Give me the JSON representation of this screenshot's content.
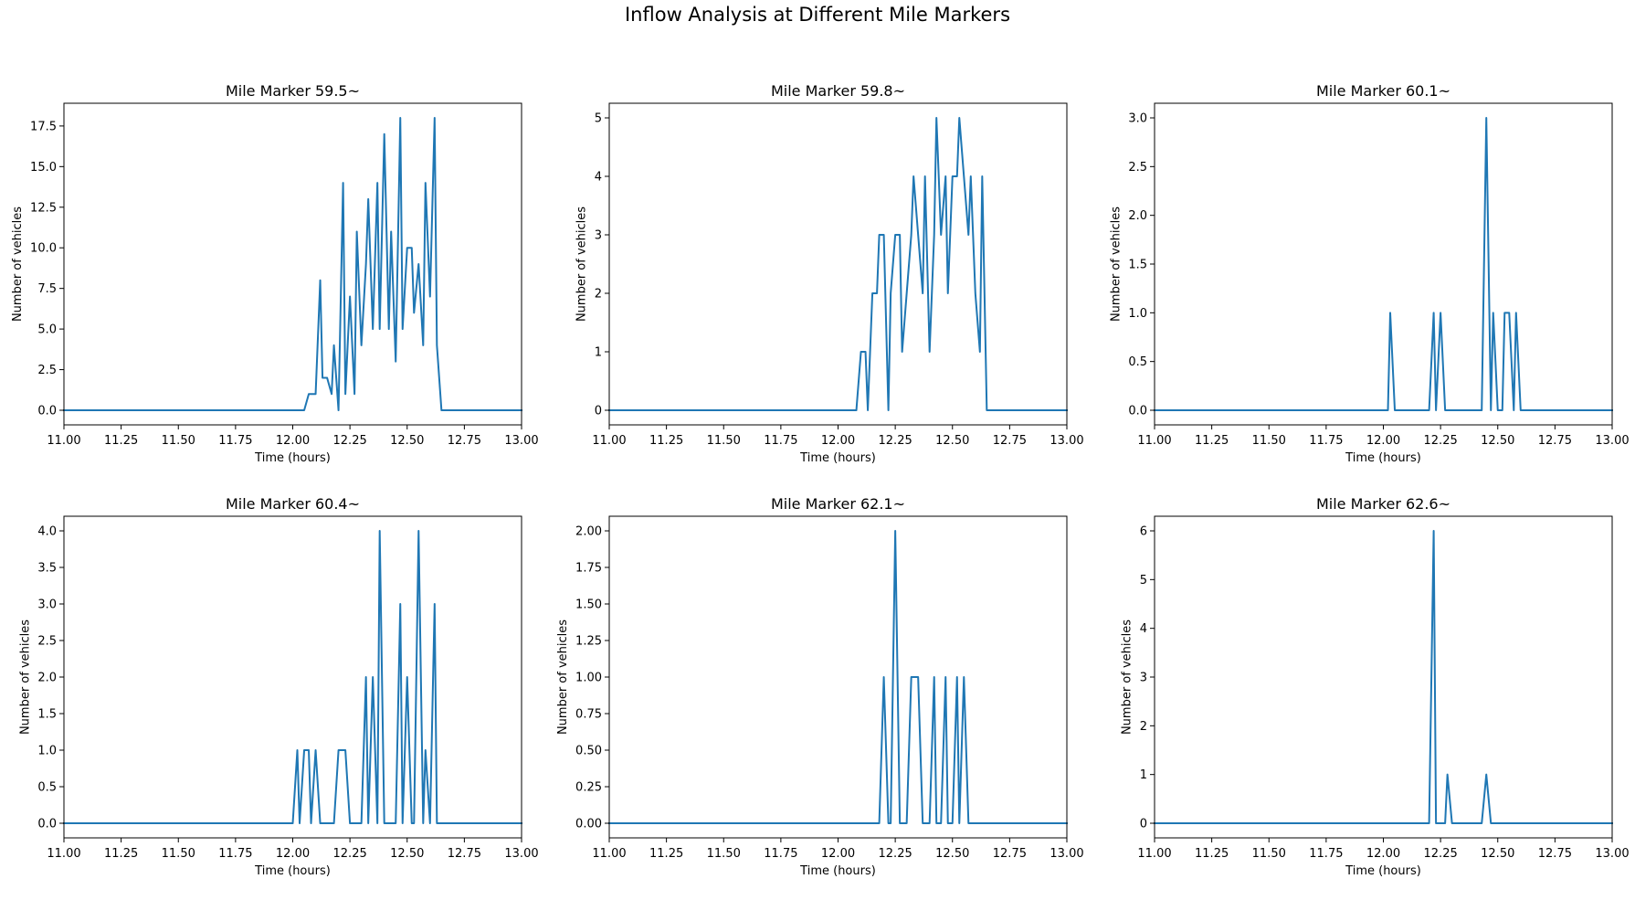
{
  "figure_title": "Inflow Analysis at Different Mile Markers",
  "line_color": "#1f77b4",
  "chart_data": [
    {
      "type": "line",
      "title": "Mile Marker 59.5~",
      "xlabel": "Time (hours)",
      "ylabel": "Number of vehicles",
      "xlim": [
        11.0,
        13.0
      ],
      "ylim": [
        -0.9,
        18.9
      ],
      "xticks": [
        11.0,
        11.25,
        11.5,
        11.75,
        12.0,
        12.25,
        12.5,
        12.75,
        13.0
      ],
      "xtick_labels": [
        "11.00",
        "11.25",
        "11.50",
        "11.75",
        "12.00",
        "12.25",
        "12.50",
        "12.75",
        "13.00"
      ],
      "yticks": [
        0,
        2.5,
        5,
        7.5,
        10,
        12.5,
        15,
        17.5
      ],
      "ytick_labels": [
        "0.0",
        "2.5",
        "5.0",
        "7.5",
        "10.0",
        "12.5",
        "15.0",
        "17.5"
      ],
      "series": [
        {
          "x": [
            11.0,
            12.05,
            12.07,
            12.1,
            12.12,
            12.13,
            12.15,
            12.17,
            12.18,
            12.2,
            12.22,
            12.23,
            12.25,
            12.27,
            12.28,
            12.3,
            12.32,
            12.33,
            12.35,
            12.37,
            12.38,
            12.4,
            12.42,
            12.43,
            12.45,
            12.47,
            12.48,
            12.5,
            12.52,
            12.53,
            12.55,
            12.57,
            12.58,
            12.6,
            12.62,
            12.63,
            12.65,
            13.0
          ],
          "y": [
            0,
            0,
            1,
            1,
            8,
            2,
            2,
            1,
            4,
            0,
            14,
            1,
            7,
            1,
            11,
            4,
            9,
            13,
            5,
            14,
            5,
            17,
            5,
            11,
            3,
            18,
            5,
            10,
            10,
            6,
            9,
            4,
            14,
            7,
            18,
            4,
            0,
            0
          ]
        }
      ]
    },
    {
      "type": "line",
      "title": "Mile Marker 59.8~",
      "xlabel": "Time (hours)",
      "ylabel": "Number of vehicles",
      "xlim": [
        11.0,
        13.0
      ],
      "ylim": [
        -0.25,
        5.25
      ],
      "xticks": [
        11.0,
        11.25,
        11.5,
        11.75,
        12.0,
        12.25,
        12.5,
        12.75,
        13.0
      ],
      "xtick_labels": [
        "11.00",
        "11.25",
        "11.50",
        "11.75",
        "12.00",
        "12.25",
        "12.50",
        "12.75",
        "13.00"
      ],
      "yticks": [
        0,
        1,
        2,
        3,
        4,
        5
      ],
      "ytick_labels": [
        "0",
        "1",
        "2",
        "3",
        "4",
        "5"
      ],
      "series": [
        {
          "x": [
            11.0,
            12.08,
            12.1,
            12.12,
            12.13,
            12.15,
            12.17,
            12.18,
            12.2,
            12.22,
            12.23,
            12.25,
            12.27,
            12.28,
            12.3,
            12.32,
            12.33,
            12.35,
            12.37,
            12.38,
            12.4,
            12.42,
            12.43,
            12.45,
            12.47,
            12.48,
            12.5,
            12.52,
            12.53,
            12.55,
            12.57,
            12.58,
            12.6,
            12.62,
            12.63,
            12.65,
            13.0
          ],
          "y": [
            0,
            0,
            1,
            1,
            0,
            2,
            2,
            3,
            3,
            0,
            2,
            3,
            3,
            1,
            2,
            3,
            4,
            3,
            2,
            4,
            1,
            3,
            5,
            3,
            4,
            2,
            4,
            4,
            5,
            4,
            3,
            4,
            2,
            1,
            4,
            0,
            0
          ]
        }
      ]
    },
    {
      "type": "line",
      "title": "Mile Marker 60.1~",
      "xlabel": "Time (hours)",
      "ylabel": "Number of vehicles",
      "xlim": [
        11.0,
        13.0
      ],
      "ylim": [
        -0.15,
        3.15
      ],
      "xticks": [
        11.0,
        11.25,
        11.5,
        11.75,
        12.0,
        12.25,
        12.5,
        12.75,
        13.0
      ],
      "xtick_labels": [
        "11.00",
        "11.25",
        "11.50",
        "11.75",
        "12.00",
        "12.25",
        "12.50",
        "12.75",
        "13.00"
      ],
      "yticks": [
        0,
        0.5,
        1,
        1.5,
        2,
        2.5,
        3
      ],
      "ytick_labels": [
        "0.0",
        "0.5",
        "1.0",
        "1.5",
        "2.0",
        "2.5",
        "3.0"
      ],
      "series": [
        {
          "x": [
            11.0,
            12.02,
            12.03,
            12.05,
            12.2,
            12.22,
            12.23,
            12.25,
            12.27,
            12.28,
            12.43,
            12.45,
            12.47,
            12.48,
            12.5,
            12.52,
            12.53,
            12.55,
            12.57,
            12.58,
            12.6,
            12.62,
            13.0
          ],
          "y": [
            0,
            0,
            1,
            0,
            0,
            1,
            0,
            1,
            0,
            0,
            0,
            3,
            0,
            1,
            0,
            0,
            1,
            1,
            0,
            1,
            0,
            0,
            0
          ]
        }
      ]
    },
    {
      "type": "line",
      "title": "Mile Marker 60.4~",
      "xlabel": "Time (hours)",
      "ylabel": "Number of vehicles",
      "xlim": [
        11.0,
        13.0
      ],
      "ylim": [
        -0.2,
        4.2
      ],
      "xticks": [
        11.0,
        11.25,
        11.5,
        11.75,
        12.0,
        12.25,
        12.5,
        12.75,
        13.0
      ],
      "xtick_labels": [
        "11.00",
        "11.25",
        "11.50",
        "11.75",
        "12.00",
        "12.25",
        "12.50",
        "12.75",
        "13.00"
      ],
      "yticks": [
        0,
        0.5,
        1,
        1.5,
        2,
        2.5,
        3,
        3.5,
        4
      ],
      "ytick_labels": [
        "0.0",
        "0.5",
        "1.0",
        "1.5",
        "2.0",
        "2.5",
        "3.0",
        "3.5",
        "4.0"
      ],
      "series": [
        {
          "x": [
            11.0,
            12.0,
            12.02,
            12.03,
            12.05,
            12.07,
            12.08,
            12.1,
            12.12,
            12.18,
            12.2,
            12.22,
            12.23,
            12.25,
            12.28,
            12.3,
            12.32,
            12.33,
            12.35,
            12.37,
            12.38,
            12.4,
            12.42,
            12.45,
            12.47,
            12.48,
            12.5,
            12.52,
            12.53,
            12.55,
            12.57,
            12.58,
            12.6,
            12.62,
            12.63,
            12.65,
            13.0
          ],
          "y": [
            0,
            0,
            1,
            0,
            1,
            1,
            0,
            1,
            0,
            0,
            1,
            1,
            1,
            0,
            0,
            0,
            2,
            0,
            2,
            0,
            4,
            0,
            0,
            0,
            3,
            0,
            2,
            0,
            0,
            4,
            0,
            1,
            0,
            3,
            0,
            0,
            0
          ]
        }
      ]
    },
    {
      "type": "line",
      "title": "Mile Marker 62.1~",
      "xlabel": "Time (hours)",
      "ylabel": "Number of vehicles",
      "xlim": [
        11.0,
        13.0
      ],
      "ylim": [
        -0.1,
        2.1
      ],
      "xticks": [
        11.0,
        11.25,
        11.5,
        11.75,
        12.0,
        12.25,
        12.5,
        12.75,
        13.0
      ],
      "xtick_labels": [
        "11.00",
        "11.25",
        "11.50",
        "11.75",
        "12.00",
        "12.25",
        "12.50",
        "12.75",
        "13.00"
      ],
      "yticks": [
        0,
        0.25,
        0.5,
        0.75,
        1,
        1.25,
        1.5,
        1.75,
        2
      ],
      "ytick_labels": [
        "0.00",
        "0.25",
        "0.50",
        "0.75",
        "1.00",
        "1.25",
        "1.50",
        "1.75",
        "2.00"
      ],
      "series": [
        {
          "x": [
            11.0,
            12.18,
            12.2,
            12.22,
            12.23,
            12.25,
            12.27,
            12.3,
            12.32,
            12.33,
            12.35,
            12.37,
            12.38,
            12.4,
            12.42,
            12.43,
            12.45,
            12.47,
            12.48,
            12.5,
            12.52,
            12.53,
            12.55,
            12.57,
            13.0
          ],
          "y": [
            0,
            0,
            1,
            0,
            0,
            2,
            0,
            0,
            1,
            1,
            1,
            0,
            0,
            0,
            1,
            0,
            0,
            1,
            0,
            0,
            1,
            0,
            1,
            0,
            0
          ]
        }
      ]
    },
    {
      "type": "line",
      "title": "Mile Marker 62.6~",
      "xlabel": "Time (hours)",
      "ylabel": "Number of vehicles",
      "xlim": [
        11.0,
        13.0
      ],
      "ylim": [
        -0.3,
        6.3
      ],
      "xticks": [
        11.0,
        11.25,
        11.5,
        11.75,
        12.0,
        12.25,
        12.5,
        12.75,
        13.0
      ],
      "xtick_labels": [
        "11.00",
        "11.25",
        "11.50",
        "11.75",
        "12.00",
        "12.25",
        "12.50",
        "12.75",
        "13.00"
      ],
      "yticks": [
        0,
        1,
        2,
        3,
        4,
        5,
        6
      ],
      "ytick_labels": [
        "0",
        "1",
        "2",
        "3",
        "4",
        "5",
        "6"
      ],
      "series": [
        {
          "x": [
            11.0,
            12.2,
            12.22,
            12.23,
            12.27,
            12.28,
            12.3,
            12.43,
            12.45,
            12.47,
            13.0
          ],
          "y": [
            0,
            0,
            6,
            0,
            0,
            1,
            0,
            0,
            1,
            0,
            0
          ]
        }
      ]
    }
  ]
}
